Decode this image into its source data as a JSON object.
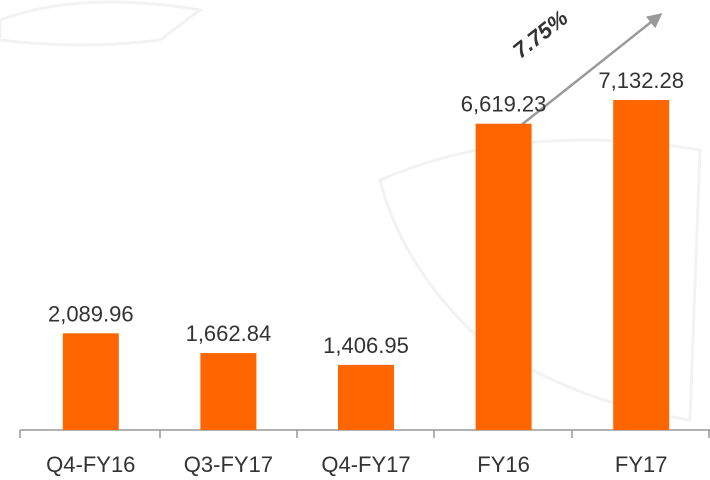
{
  "chart_data": {
    "type": "bar",
    "categories": [
      "Q4-FY16",
      "Q3-FY17",
      "Q4-FY17",
      "FY16",
      "FY17"
    ],
    "values": [
      2089.96,
      1662.84,
      1406.95,
      6619.23,
      7132.28
    ],
    "value_labels": [
      "2,089.96",
      "1,662.84",
      "1,406.95",
      "6,619.23",
      "7,132.28"
    ],
    "color": "#ff6600",
    "annotation": "7.75%"
  }
}
